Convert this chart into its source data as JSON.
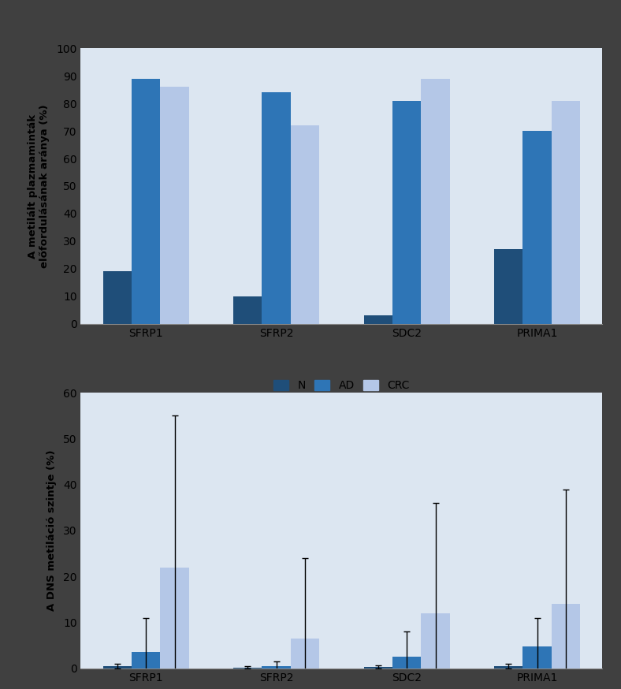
{
  "categories": [
    "SFRP1",
    "SFRP2",
    "SDC2",
    "PRIMA1"
  ],
  "chart_A": {
    "ylabel": "A metilált plazmaminták\nelőfordulásának aránya (%)",
    "ylim": [
      0,
      100
    ],
    "yticks": [
      0,
      10,
      20,
      30,
      40,
      50,
      60,
      70,
      80,
      90,
      100
    ],
    "N": [
      19,
      10,
      3,
      27
    ],
    "AD": [
      89,
      84,
      81,
      70
    ],
    "CRC": [
      86,
      72,
      89,
      81
    ]
  },
  "chart_B": {
    "ylabel": "A DNS metiláció szintje (%)",
    "ylim": [
      0,
      60
    ],
    "yticks": [
      0,
      10,
      20,
      30,
      40,
      50,
      60
    ],
    "N_mean": [
      0.5,
      0.2,
      0.3,
      0.5
    ],
    "N_err": [
      0.5,
      0.2,
      0.3,
      0.5
    ],
    "AD_mean": [
      3.5,
      0.5,
      2.5,
      4.8
    ],
    "AD_err": [
      7.5,
      1.0,
      5.5,
      6.2
    ],
    "CRC_mean": [
      22.0,
      6.5,
      12.0,
      14.0
    ],
    "CRC_err": [
      33.0,
      17.5,
      24.0,
      25.0
    ]
  },
  "color_N": "#1f4e79",
  "color_AD": "#2e75b6",
  "color_CRC": "#b4c7e7",
  "bg_color": "#dce6f1",
  "outer_bg": "#404040",
  "bar_width": 0.22
}
